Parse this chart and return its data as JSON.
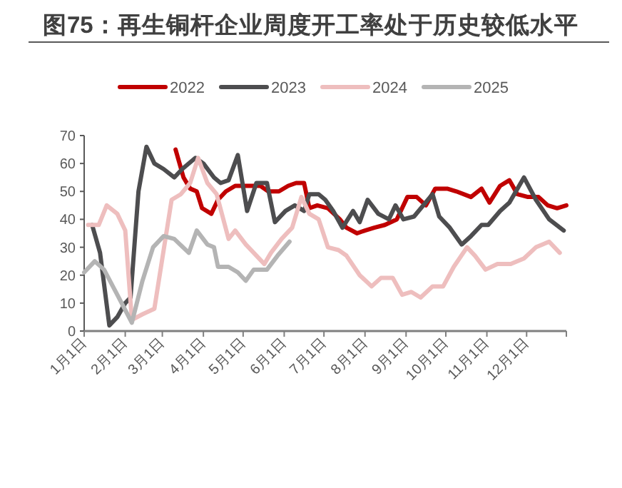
{
  "chart_data": {
    "type": "line",
    "title": "图75：再生铜杆企业周度开工率处于历史较低水平",
    "legend": "top",
    "grid": false,
    "marker": "none",
    "line_style": "solid",
    "xlim": [
      "--01-01",
      "--12-31"
    ],
    "xticks": [
      {
        "value": "--01-01",
        "label": "1月1日"
      },
      {
        "value": "--02-01",
        "label": "2月1日"
      },
      {
        "value": "--03-01",
        "label": "3月1日"
      },
      {
        "value": "--04-01",
        "label": "4月1日"
      },
      {
        "value": "--05-01",
        "label": "5月1日"
      },
      {
        "value": "--06-01",
        "label": "6月1日"
      },
      {
        "value": "--07-01",
        "label": "7月1日"
      },
      {
        "value": "--08-01",
        "label": "8月1日"
      },
      {
        "value": "--09-01",
        "label": "9月1日"
      },
      {
        "value": "--10-01",
        "label": "10月1日"
      },
      {
        "value": "--11-01",
        "label": "11月1日"
      },
      {
        "value": "--12-01",
        "label": "12月1日"
      }
    ],
    "ylim": [
      0,
      70
    ],
    "yticks": [
      0,
      10,
      20,
      30,
      40,
      50,
      60,
      70
    ],
    "series": [
      {
        "name": "2022",
        "color": "#c00000",
        "x": [
          "--03-11",
          "--03-17",
          "--03-22",
          "--03-27",
          "--03-31",
          "--04-07",
          "--04-12",
          "--04-18",
          "--04-25",
          "--05-06",
          "--05-14",
          "--05-20",
          "--05-28",
          "--06-04",
          "--06-10",
          "--06-16",
          "--06-20",
          "--06-26",
          "--07-04",
          "--07-13",
          "--07-18",
          "--07-26",
          "--08-01",
          "--08-08",
          "--08-16",
          "--08-25",
          "--09-02",
          "--09-09",
          "--09-16",
          "--09-23",
          "--10-02",
          "--10-09",
          "--10-20",
          "--10-28",
          "--11-03",
          "--11-11",
          "--11-18",
          "--11-24",
          "--12-02",
          "--12-10",
          "--12-17",
          "--12-24",
          "--12-31"
        ],
        "values": [
          65,
          55,
          51,
          50,
          44,
          42,
          47,
          50,
          52,
          52,
          52,
          50,
          50,
          52,
          53,
          53,
          44,
          45,
          44,
          40,
          37,
          35,
          36,
          37,
          38,
          40,
          48,
          48,
          45,
          51,
          51,
          50,
          48,
          51,
          46,
          52,
          54,
          49,
          48,
          48,
          45,
          44,
          45
        ]
      },
      {
        "name": "2023",
        "color": "#4d4d4f",
        "x": [
          "--01-07",
          "--01-13",
          "--01-20",
          "--01-26",
          "--02-01",
          "--02-05",
          "--02-11",
          "--02-17",
          "--02-23",
          "--03-02",
          "--03-10",
          "--03-16",
          "--03-26",
          "--04-01",
          "--04-09",
          "--04-14",
          "--04-20",
          "--04-27",
          "--05-04",
          "--05-11",
          "--05-19",
          "--05-25",
          "--06-02",
          "--06-09",
          "--06-16",
          "--06-20",
          "--06-27",
          "--07-02",
          "--07-08",
          "--07-15",
          "--07-23",
          "--07-28",
          "--08-03",
          "--08-11",
          "--08-19",
          "--08-24",
          "--08-30",
          "--09-07",
          "--09-21",
          "--09-26",
          "--10-04",
          "--10-13",
          "--10-20",
          "--10-28",
          "--11-02",
          "--11-11",
          "--11-18",
          "--11-29",
          "--12-08",
          "--12-18",
          "--12-29"
        ],
        "values": [
          38,
          28,
          2,
          5,
          10,
          12,
          50,
          66,
          60,
          58,
          55,
          58,
          62,
          60,
          55,
          53,
          54,
          63,
          43,
          53,
          53,
          39,
          43,
          45,
          43,
          49,
          49,
          47,
          43,
          37,
          43,
          39,
          47,
          42,
          40,
          45,
          40,
          41,
          49,
          41,
          37,
          31,
          34,
          38,
          38,
          43,
          46,
          55,
          47,
          40,
          36
        ]
      },
      {
        "name": "2024",
        "color": "#eebebe",
        "x": [
          "--01-04",
          "--01-12",
          "--01-18",
          "--01-26",
          "--02-01",
          "--02-06",
          "--02-14",
          "--02-23",
          "--03-08",
          "--03-15",
          "--03-22",
          "--03-28",
          "--04-04",
          "--04-11",
          "--04-20",
          "--04-25",
          "--05-03",
          "--05-09",
          "--05-17",
          "--05-22",
          "--05-30",
          "--06-07",
          "--06-14",
          "--06-20",
          "--06-27",
          "--07-04",
          "--07-12",
          "--07-18",
          "--07-28",
          "--08-06",
          "--08-13",
          "--08-22",
          "--08-29",
          "--09-05",
          "--09-12",
          "--09-21",
          "--09-29",
          "--10-07",
          "--10-17",
          "--10-23",
          "--10-31",
          "--11-09",
          "--11-19",
          "--11-29",
          "--12-08",
          "--12-18",
          "--12-26"
        ],
        "values": [
          38,
          38,
          45,
          42,
          36,
          4,
          6,
          8,
          47,
          49,
          53,
          62,
          53,
          49,
          33,
          36,
          31,
          28,
          24,
          28,
          33,
          37,
          48,
          42,
          40,
          30,
          29,
          27,
          20,
          16,
          19,
          19,
          13,
          14,
          12,
          16,
          16,
          23,
          30,
          27,
          22,
          24,
          24,
          26,
          30,
          32,
          28
        ]
      },
      {
        "name": "2025",
        "color": "#b4b4b4",
        "x": [
          "--01-01",
          "--01-09",
          "--01-16",
          "--01-26",
          "--02-06",
          "--02-14",
          "--02-22",
          "--03-02",
          "--03-10",
          "--03-21",
          "--03-27",
          "--04-04",
          "--04-09",
          "--04-12",
          "--04-20",
          "--04-27",
          "--05-03",
          "--05-09",
          "--05-19",
          "--05-27",
          "--06-05"
        ],
        "values": [
          21,
          25,
          22,
          13,
          3,
          18,
          30,
          34,
          33,
          28,
          36,
          31,
          30,
          23,
          23,
          21,
          18,
          22,
          22,
          27,
          32
        ]
      }
    ]
  }
}
